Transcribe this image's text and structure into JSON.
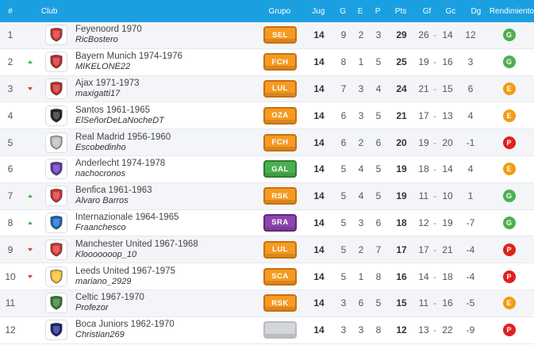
{
  "header": {
    "pos": "#",
    "club": "Club",
    "grupo": "Grupo",
    "jug": "Jug",
    "g": "G",
    "e": "E",
    "p": "P",
    "pts": "Pts",
    "gf": "Gf",
    "gc": "Gc",
    "dg": "Dg",
    "rend": "Rendimiento"
  },
  "colors": {
    "header_bg": "#1aa0e0",
    "badge_orange": "#f59a23",
    "badge_green": "#4caf50",
    "badge_purple": "#8e44ad",
    "badge_gray": "#d4d6d9",
    "rend_G": "#4caf50",
    "rend_E": "#f39c12",
    "rend_P": "#e0201e"
  },
  "rows": [
    {
      "pos": "1",
      "trend": "none",
      "club": "Feyenoord 1970",
      "user": "RicBostero",
      "grupo": "SEL",
      "grupo_color": "orange",
      "jug": "14",
      "g": "9",
      "e": "2",
      "p": "3",
      "pts": "29",
      "gf": "26",
      "gc": "14",
      "dg": "12",
      "rend": "G",
      "shield": "#d32f2f"
    },
    {
      "pos": "2",
      "trend": "up",
      "club": "Bayern Munich 1974-1976",
      "user": "MIKELONE22",
      "grupo": "FCH",
      "grupo_color": "orange",
      "jug": "14",
      "g": "8",
      "e": "1",
      "p": "5",
      "pts": "25",
      "gf": "19",
      "gc": "16",
      "dg": "3",
      "rend": "G",
      "shield": "#c62828"
    },
    {
      "pos": "3",
      "trend": "down",
      "club": "Ajax 1971-1973",
      "user": "maxigatti17",
      "grupo": "LUL",
      "grupo_color": "orange",
      "jug": "14",
      "g": "7",
      "e": "3",
      "p": "4",
      "pts": "24",
      "gf": "21",
      "gc": "15",
      "dg": "6",
      "rend": "E",
      "shield": "#c62828"
    },
    {
      "pos": "4",
      "trend": "none",
      "club": "Santos 1961-1965",
      "user": "ElSeñorDeLaNocheDT",
      "grupo": "OZA",
      "grupo_color": "orange",
      "jug": "14",
      "g": "6",
      "e": "3",
      "p": "5",
      "pts": "21",
      "gf": "17",
      "gc": "13",
      "dg": "4",
      "rend": "E",
      "shield": "#222222"
    },
    {
      "pos": "5",
      "trend": "none",
      "club": "Real Madrid 1956-1960",
      "user": "Escobedinho",
      "grupo": "FCH",
      "grupo_color": "orange",
      "jug": "14",
      "g": "6",
      "e": "2",
      "p": "6",
      "pts": "20",
      "gf": "19",
      "gc": "20",
      "dg": "-1",
      "rend": "P",
      "shield": "#bdbdbd"
    },
    {
      "pos": "6",
      "trend": "none",
      "club": "Anderlecht 1974-1978",
      "user": "nachocronos",
      "grupo": "GAL",
      "grupo_color": "green",
      "jug": "14",
      "g": "5",
      "e": "4",
      "p": "5",
      "pts": "19",
      "gf": "18",
      "gc": "14",
      "dg": "4",
      "rend": "E",
      "shield": "#5e35b1"
    },
    {
      "pos": "7",
      "trend": "up",
      "club": "Benfica 1961-1963",
      "user": "Alvaro Barros",
      "grupo": "RSK",
      "grupo_color": "orange",
      "jug": "14",
      "g": "5",
      "e": "4",
      "p": "5",
      "pts": "19",
      "gf": "11",
      "gc": "10",
      "dg": "1",
      "rend": "G",
      "shield": "#d32f2f"
    },
    {
      "pos": "8",
      "trend": "up",
      "club": "Internazionale 1964-1965",
      "user": "Fraanchesco",
      "grupo": "SRA",
      "grupo_color": "purple",
      "jug": "14",
      "g": "5",
      "e": "3",
      "p": "6",
      "pts": "18",
      "gf": "12",
      "gc": "19",
      "dg": "-7",
      "rend": "G",
      "shield": "#1565c0"
    },
    {
      "pos": "9",
      "trend": "down",
      "club": "Manchester United 1967-1968",
      "user": "Klooooooop_10",
      "grupo": "LUL",
      "grupo_color": "orange",
      "jug": "14",
      "g": "5",
      "e": "2",
      "p": "7",
      "pts": "17",
      "gf": "17",
      "gc": "21",
      "dg": "-4",
      "rend": "P",
      "shield": "#d32f2f"
    },
    {
      "pos": "10",
      "trend": "down",
      "club": "Leeds United 1967-1975",
      "user": "mariano_2929",
      "grupo": "SCA",
      "grupo_color": "orange",
      "jug": "14",
      "g": "5",
      "e": "1",
      "p": "8",
      "pts": "16",
      "gf": "14",
      "gc": "18",
      "dg": "-4",
      "rend": "P",
      "shield": "#fbc02d"
    },
    {
      "pos": "11",
      "trend": "none",
      "club": "Celtic 1967-1970",
      "user": "Profezor",
      "grupo": "RSK",
      "grupo_color": "orange",
      "jug": "14",
      "g": "3",
      "e": "6",
      "p": "5",
      "pts": "15",
      "gf": "11",
      "gc": "16",
      "dg": "-5",
      "rend": "E",
      "shield": "#2e7d32"
    },
    {
      "pos": "12",
      "trend": "none",
      "club": "Boca Juniors 1962-1970",
      "user": "Christian269",
      "grupo": "",
      "grupo_color": "gray",
      "jug": "14",
      "g": "3",
      "e": "3",
      "p": "8",
      "pts": "12",
      "gf": "13",
      "gc": "22",
      "dg": "-9",
      "rend": "P",
      "shield": "#1a237e"
    }
  ]
}
